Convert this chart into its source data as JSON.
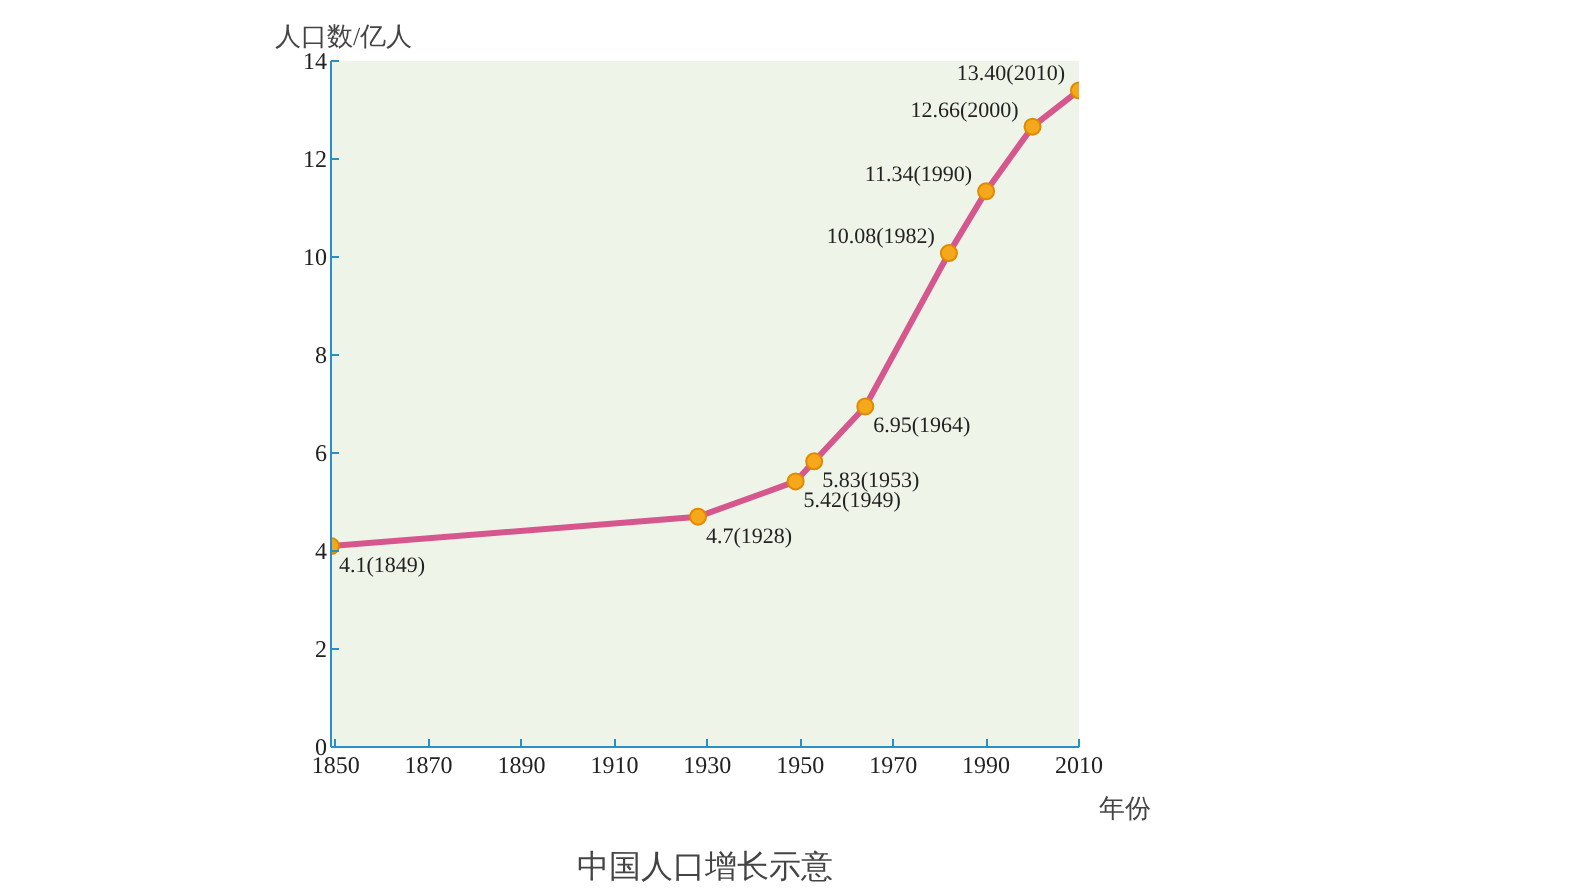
{
  "chart_data": {
    "type": "line",
    "title": "中国人口增长示意",
    "xlabel": "年份",
    "ylabel": "人口数/亿人",
    "x": [
      1849,
      1928,
      1949,
      1953,
      1964,
      1982,
      1990,
      2000,
      2010
    ],
    "series": [
      {
        "color": "#d6568e",
        "values": [
          4.1,
          4.7,
          5.42,
          5.83,
          6.95,
          10.08,
          11.34,
          12.66,
          13.4
        ],
        "value_labels": [
          "4.1(1849)",
          "4.7(1928)",
          "5.42(1949)",
          "5.83(1953)",
          "6.95(1964)",
          "10.08(1982)",
          "11.34(1990)",
          "12.66(2000)",
          "13.40(2010)"
        ]
      }
    ],
    "xlim": [
      1849,
      2010
    ],
    "xticks": [
      1850,
      1870,
      1890,
      1910,
      1930,
      1950,
      1970,
      1990,
      2010
    ],
    "ylim": [
      0,
      14
    ],
    "yticks": [
      0,
      2,
      4,
      6,
      8,
      10,
      12,
      14
    ],
    "marker": "circle",
    "line_style": "solid",
    "grid": false
  }
}
